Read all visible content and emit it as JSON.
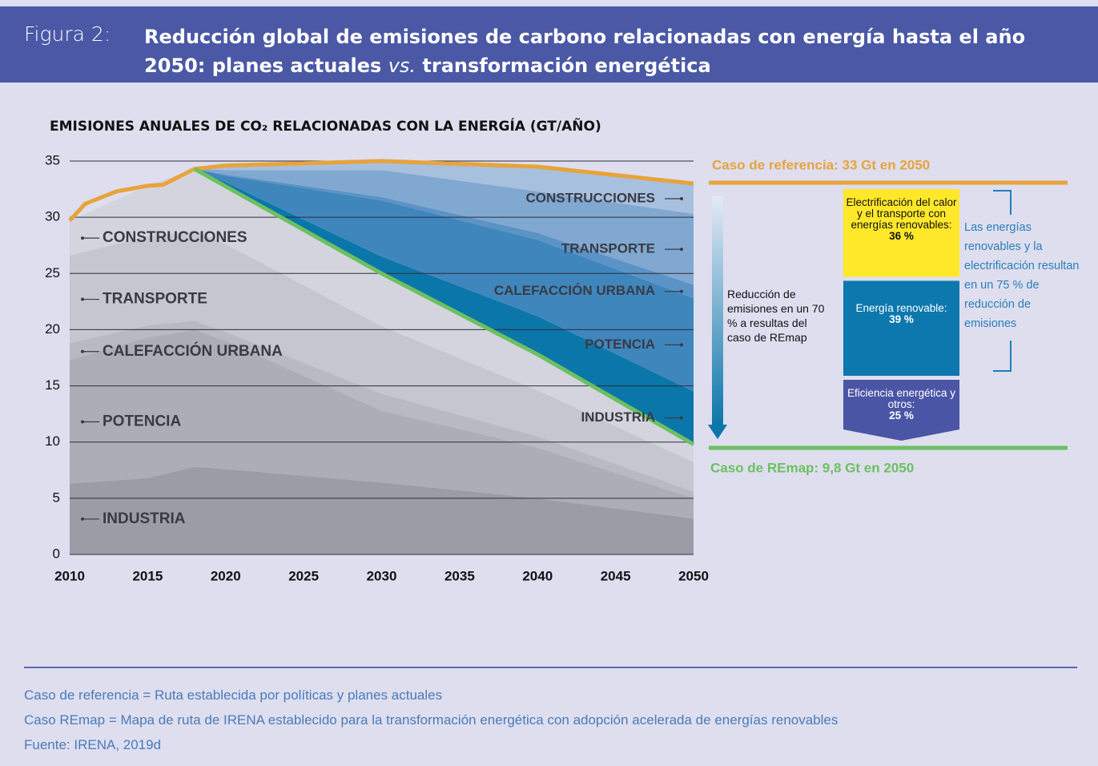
{
  "header": {
    "figure": "Figura 2:",
    "title_line1": "Reducción global de emisiones de carbono relacionadas con energía hasta el año",
    "title_part1": "2050: planes actuales",
    "title_part2": "vs.",
    "title_part3": "transformación energética"
  },
  "chart_data": {
    "type": "area",
    "title": "EMISIONES ANUALES DE CO₂ RELACIONADAS CON LA ENERGÍA (GT/AÑO)",
    "x": [
      2010,
      2015,
      2018,
      2020,
      2030,
      2040,
      2050
    ],
    "xlim": [
      2010,
      2050
    ],
    "xticks": [
      2010,
      2015,
      2020,
      2025,
      2030,
      2035,
      2040,
      2045,
      2050
    ],
    "ylim": [
      0,
      35
    ],
    "yticks": [
      0,
      5,
      10,
      15,
      20,
      25,
      30,
      35
    ],
    "grid": true,
    "series": [
      {
        "name": "INDUSTRIA",
        "color": "#9c9ca7",
        "values": [
          6.3,
          6.8,
          7.8,
          7.6,
          6.4,
          5.0,
          3.2
        ]
      },
      {
        "name": "POTENCIA",
        "color": "#adadb8",
        "values": [
          11.0,
          12.5,
          12.2,
          11.4,
          6.4,
          4.5,
          1.8
        ]
      },
      {
        "name": "CALEFACCIÓN URBANA",
        "color": "#b9b9c4",
        "values": [
          1.5,
          1.1,
          0.8,
          0.8,
          1.5,
          1.0,
          0.6
        ]
      },
      {
        "name": "TRANSPORTE",
        "color": "#c6c6d1",
        "values": [
          7.8,
          7.9,
          8.0,
          7.8,
          6.0,
          4.1,
          2.6
        ]
      },
      {
        "name": "CONSTRUCCIONES",
        "color": "#d4d4df",
        "values": [
          3.1,
          4.5,
          5.5,
          5.2,
          4.7,
          3.2,
          1.6
        ]
      }
    ],
    "reduction_series": [
      {
        "name": "INDUSTRIA",
        "color": "#0b76aa",
        "values": [
          null,
          null,
          0,
          0.3,
          1.5,
          3.4,
          4.7
        ]
      },
      {
        "name": "POTENCIA",
        "color": "#3f86bd",
        "values": [
          null,
          null,
          0,
          0.6,
          5.0,
          6.8,
          8.3
        ]
      },
      {
        "name": "CALEFACCIÓN URBANA",
        "color": "#5b93c6",
        "values": [
          null,
          null,
          0,
          0.1,
          0.3,
          0.6,
          1.2
        ]
      },
      {
        "name": "TRANSPORTE",
        "color": "#80a8d1",
        "values": [
          null,
          null,
          0,
          0.4,
          2.4,
          3.7,
          6.3
        ]
      },
      {
        "name": "CONSTRUCCIONES",
        "color": "#a7c0de",
        "values": [
          null,
          null,
          0,
          0.4,
          0.8,
          2.2,
          2.7
        ]
      }
    ],
    "lines": [
      {
        "color": "#e8a33a",
        "x": [
          2010,
          2011,
          2013,
          2015,
          2016,
          2018,
          2020,
          2030,
          2040,
          2050
        ],
        "values": [
          29.7,
          31.2,
          32.3,
          32.8,
          32.9,
          34.3,
          34.6,
          35.0,
          34.5,
          33.0
        ]
      },
      {
        "color": "#6cc060",
        "x": [
          2018,
          2030,
          2040,
          2050
        ],
        "values": [
          34.3,
          25.0,
          17.8,
          9.8
        ]
      }
    ],
    "annotations": [
      {
        "text": "Caso de referencia: 33 Gt en 2050",
        "color": "#e8a33a"
      },
      {
        "text": "Caso de REmap: 9,8 Gt en 2050",
        "color": "#6cc060"
      }
    ],
    "arrow_text": "Reducción de emisiones en un 70 % a resultas del caso de REmap",
    "breakdown": {
      "items": [
        {
          "label": "Electrificación del calor y el transporte con energías renovables:",
          "value": 36,
          "value_label": "36 %",
          "color": "#ffe82a",
          "text_color": "#111111"
        },
        {
          "label": "Energía renovable:",
          "value": 39,
          "value_label": "39 %",
          "color": "#0c78ad",
          "text_color": "#ffffff"
        },
        {
          "label": "Eficiencia energética y otros:",
          "value": 25,
          "value_label": "25 %",
          "color": "#4a55a5",
          "text_color": "#ffffff"
        }
      ],
      "bracket_text": "Las energías renovables y la electrificación resultan en un 75 % de reducción de emisiones"
    }
  },
  "notes": [
    "Caso de referencia = Ruta establecida por políticas y planes actuales",
    "Caso REmap = Mapa de ruta de IRENA establecido para la transformación energética con adopción acelerada de energías renovables",
    "Fuente: IRENA, 2019d"
  ]
}
